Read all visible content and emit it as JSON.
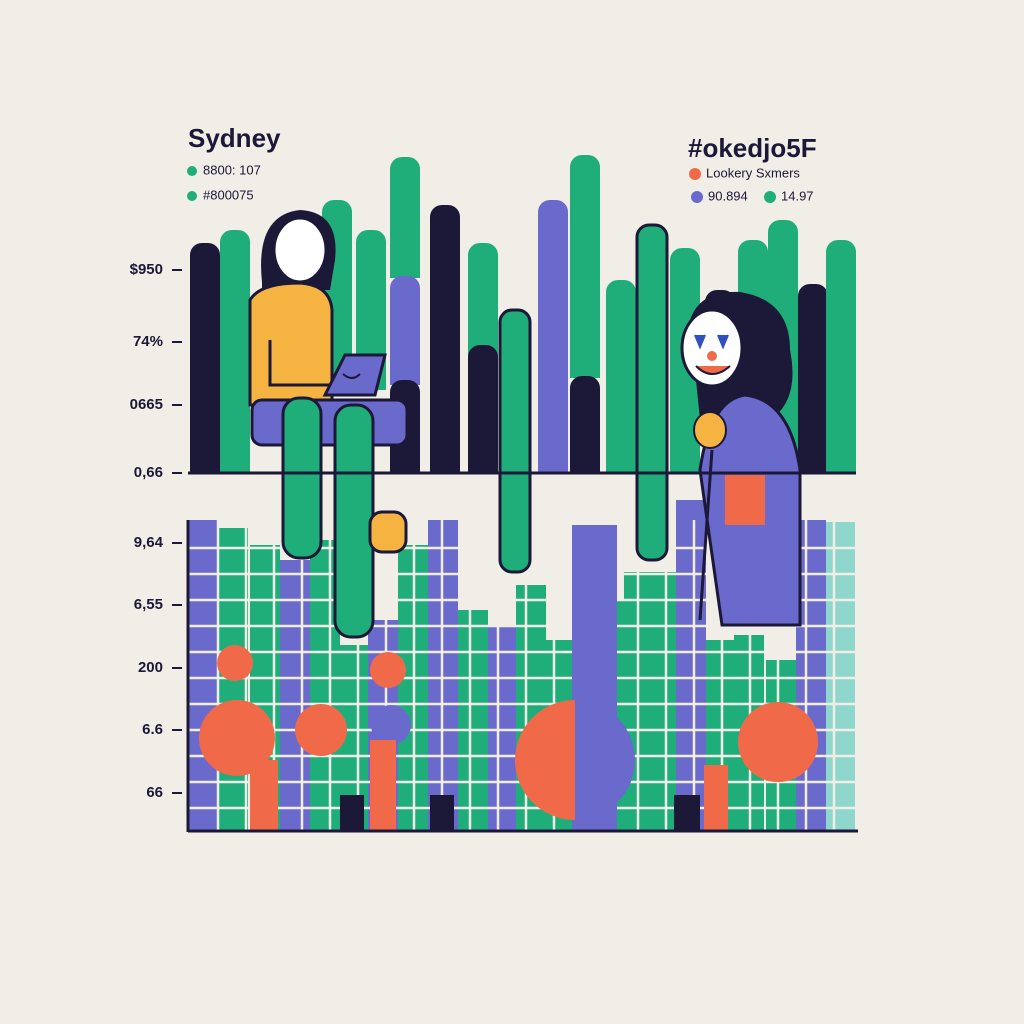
{
  "left_legend": {
    "title": "Sydney",
    "items": [
      "8800: 107",
      "#800075"
    ]
  },
  "right_legend": {
    "title": "#okedjo5F",
    "items": [
      "Lookery Sxmers",
      "90.894",
      "14.97"
    ]
  },
  "axis_labels": [
    "$950",
    "74%",
    "0665",
    "0,66",
    "9,64",
    "6,55",
    "200",
    "6.6",
    "66"
  ]
}
